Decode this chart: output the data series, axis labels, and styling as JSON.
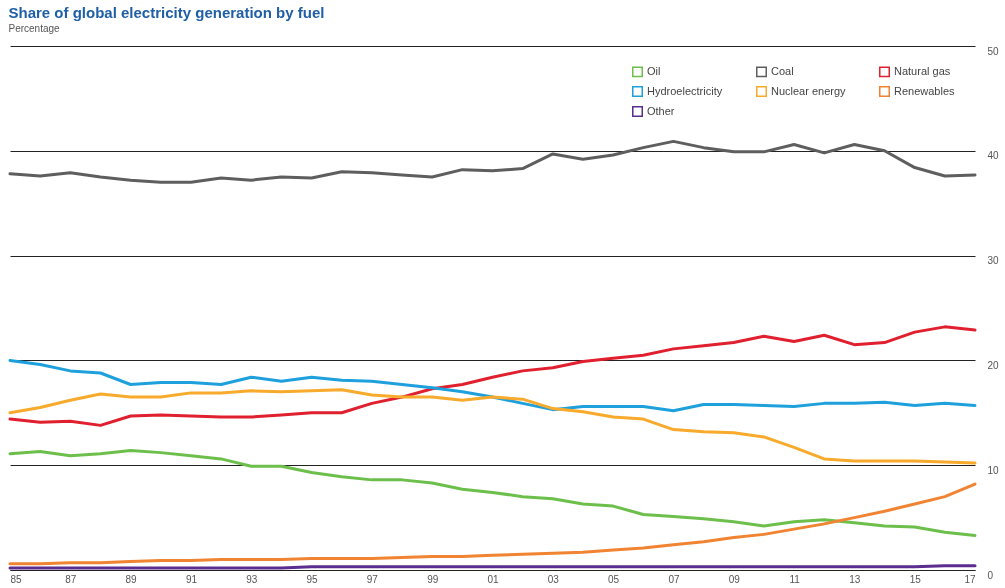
{
  "chart_data": {
    "type": "line",
    "title": "Share of global electricity generation by fuel",
    "subtitle": "Percentage",
    "x": [
      1985,
      1986,
      1987,
      1988,
      1989,
      1990,
      1991,
      1992,
      1993,
      1994,
      1995,
      1996,
      1997,
      1998,
      1999,
      2000,
      2001,
      2002,
      2003,
      2004,
      2005,
      2006,
      2007,
      2008,
      2009,
      2010,
      2011,
      2012,
      2013,
      2014,
      2015,
      2016,
      2017
    ],
    "series": [
      {
        "name": "Oil",
        "color": "#6dbf4b",
        "values": [
          11.1,
          11.3,
          10.9,
          11.1,
          11.4,
          11.2,
          10.9,
          10.6,
          9.9,
          9.9,
          9.3,
          8.9,
          8.6,
          8.6,
          8.3,
          7.7,
          7.4,
          7.0,
          6.8,
          6.3,
          6.1,
          5.3,
          5.1,
          4.9,
          4.6,
          4.2,
          4.6,
          4.8,
          4.5,
          4.2,
          4.1,
          3.6,
          3.3
        ]
      },
      {
        "name": "Coal",
        "color": "#5e5e5e",
        "values": [
          37.8,
          37.6,
          37.9,
          37.5,
          37.2,
          37.0,
          37.0,
          37.4,
          37.2,
          37.5,
          37.4,
          38.0,
          37.9,
          37.7,
          37.5,
          38.2,
          38.1,
          38.3,
          39.7,
          39.2,
          39.6,
          40.3,
          40.9,
          40.3,
          39.9,
          39.9,
          40.6,
          39.8,
          40.6,
          40.0,
          38.4,
          37.6,
          37.7
        ]
      },
      {
        "name": "Natural gas",
        "color": "#e0202e",
        "values": [
          14.4,
          14.1,
          14.2,
          13.8,
          14.7,
          14.8,
          14.7,
          14.6,
          14.6,
          14.8,
          15.0,
          15.0,
          15.9,
          16.5,
          17.3,
          17.7,
          18.4,
          19.0,
          19.3,
          19.9,
          20.2,
          20.5,
          21.1,
          21.4,
          21.7,
          22.3,
          21.8,
          22.4,
          21.5,
          21.7,
          22.7,
          23.2,
          22.9
        ]
      },
      {
        "name": "Hydroelectricity",
        "color": "#1ea0dc",
        "values": [
          20.0,
          19.6,
          19.0,
          18.8,
          17.7,
          17.9,
          17.9,
          17.7,
          18.4,
          18.0,
          18.4,
          18.1,
          18.0,
          17.7,
          17.4,
          17.0,
          16.5,
          15.9,
          15.3,
          15.6,
          15.6,
          15.6,
          15.2,
          15.8,
          15.8,
          15.7,
          15.6,
          15.9,
          15.9,
          16.0,
          15.7,
          15.9,
          15.7
        ]
      },
      {
        "name": "Nuclear energy",
        "color": "#f7aa2b",
        "values": [
          15.0,
          15.5,
          16.2,
          16.8,
          16.5,
          16.5,
          16.9,
          16.9,
          17.1,
          17.0,
          17.1,
          17.2,
          16.7,
          16.5,
          16.5,
          16.2,
          16.5,
          16.3,
          15.4,
          15.1,
          14.6,
          14.4,
          13.4,
          13.2,
          13.1,
          12.7,
          11.7,
          10.6,
          10.4,
          10.4,
          10.4,
          10.3,
          10.2
        ]
      },
      {
        "name": "Renewables",
        "color": "#f08432",
        "values": [
          0.6,
          0.6,
          0.7,
          0.7,
          0.8,
          0.9,
          0.9,
          1.0,
          1.0,
          1.0,
          1.1,
          1.1,
          1.1,
          1.2,
          1.3,
          1.3,
          1.4,
          1.5,
          1.6,
          1.7,
          1.9,
          2.1,
          2.4,
          2.7,
          3.1,
          3.4,
          3.9,
          4.4,
          5.0,
          5.6,
          6.3,
          7.0,
          8.2
        ]
      },
      {
        "name": "Other",
        "color": "#5b2d90",
        "values": [
          0.2,
          0.2,
          0.2,
          0.2,
          0.2,
          0.2,
          0.2,
          0.2,
          0.2,
          0.2,
          0.3,
          0.3,
          0.3,
          0.3,
          0.3,
          0.3,
          0.3,
          0.3,
          0.3,
          0.3,
          0.3,
          0.3,
          0.3,
          0.3,
          0.3,
          0.3,
          0.3,
          0.3,
          0.3,
          0.3,
          0.3,
          0.4,
          0.4
        ]
      }
    ],
    "xlim": [
      1985,
      2017
    ],
    "xticks": [
      {
        "value": 1985,
        "label": "85"
      },
      {
        "value": 1987,
        "label": "87"
      },
      {
        "value": 1989,
        "label": "89"
      },
      {
        "value": 1991,
        "label": "91"
      },
      {
        "value": 1993,
        "label": "93"
      },
      {
        "value": 1995,
        "label": "95"
      },
      {
        "value": 1997,
        "label": "97"
      },
      {
        "value": 1999,
        "label": "99"
      },
      {
        "value": 2001,
        "label": "01"
      },
      {
        "value": 2003,
        "label": "03"
      },
      {
        "value": 2005,
        "label": "05"
      },
      {
        "value": 2007,
        "label": "07"
      },
      {
        "value": 2009,
        "label": "09"
      },
      {
        "value": 2011,
        "label": "11"
      },
      {
        "value": 2013,
        "label": "13"
      },
      {
        "value": 2015,
        "label": "15"
      },
      {
        "value": 2017,
        "label": "17"
      }
    ],
    "ylim": [
      0,
      50
    ],
    "yticks": [
      0,
      10,
      20,
      30,
      40,
      50
    ],
    "grid": "y",
    "legend": "top right",
    "marker": "none",
    "line_style": "solid"
  }
}
